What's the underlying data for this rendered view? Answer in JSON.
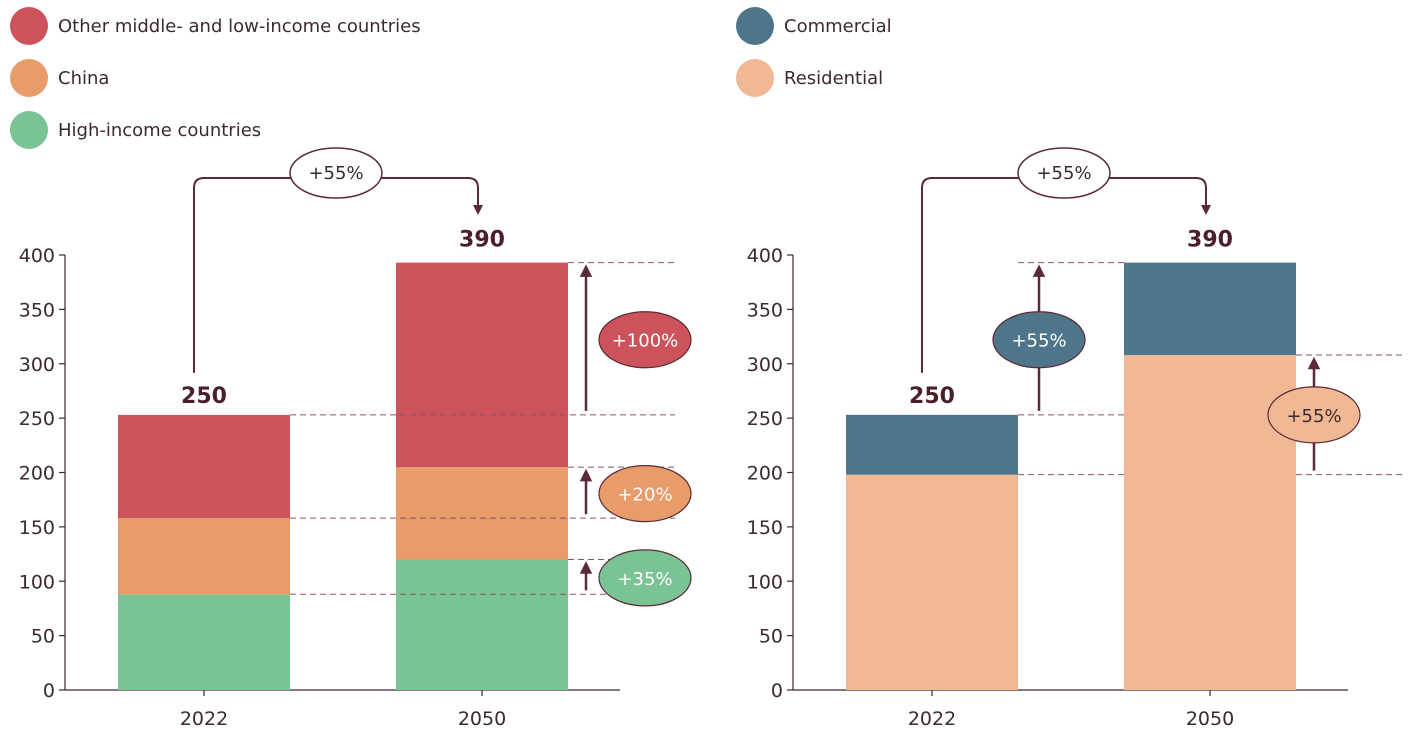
{
  "legends": {
    "left": [
      {
        "label": "Other middle- and low-income countries",
        "color": "#cc535b"
      },
      {
        "label": "China",
        "color": "#e89c6a"
      },
      {
        "label": "High-income countries",
        "color": "#79c394"
      }
    ],
    "right": [
      {
        "label": "Commercial",
        "color": "#4e758a"
      },
      {
        "label": "Residential",
        "color": "#f0b894"
      }
    ]
  },
  "colors": {
    "ink": "#3b2a30",
    "arrow": "#5a2a35",
    "dash": "#8a5560"
  },
  "chart_data": [
    {
      "type": "bar",
      "stacked": true,
      "categories": [
        "2022",
        "2050"
      ],
      "ylim": [
        0,
        400
      ],
      "yticks": [
        0,
        50,
        100,
        150,
        200,
        250,
        300,
        350,
        400
      ],
      "series": [
        {
          "name": "High-income countries",
          "values": [
            88,
            120
          ],
          "color": "#79c394"
        },
        {
          "name": "China",
          "values": [
            70,
            85
          ],
          "color": "#e89c6a"
        },
        {
          "name": "Other middle- and low-income countries",
          "values": [
            95,
            188
          ],
          "color": "#cc535b"
        }
      ],
      "totals": [
        "250",
        "390"
      ],
      "total_change": "+55%",
      "changes": [
        {
          "label": "+100%",
          "series": "Other middle- and low-income countries",
          "color": "#cc535b",
          "text": "light"
        },
        {
          "label": "+20%",
          "series": "China",
          "color": "#e89c6a",
          "text": "light"
        },
        {
          "label": "+35%",
          "series": "High-income countries",
          "color": "#79c394",
          "text": "light"
        }
      ]
    },
    {
      "type": "bar",
      "stacked": true,
      "categories": [
        "2022",
        "2050"
      ],
      "ylim": [
        0,
        400
      ],
      "yticks": [
        0,
        50,
        100,
        150,
        200,
        250,
        300,
        350,
        400
      ],
      "series": [
        {
          "name": "Residential",
          "values": [
            198,
            308
          ],
          "color": "#f0b894"
        },
        {
          "name": "Commercial",
          "values": [
            55,
            85
          ],
          "color": "#4e758a"
        }
      ],
      "totals": [
        "250",
        "390"
      ],
      "total_change": "+55%",
      "changes": [
        {
          "label": "+55%",
          "series": "Commercial",
          "color": "#4e758a",
          "text": "light"
        },
        {
          "label": "+55%",
          "series": "Residential",
          "color": "#f0b894",
          "text": "dark"
        }
      ]
    }
  ]
}
